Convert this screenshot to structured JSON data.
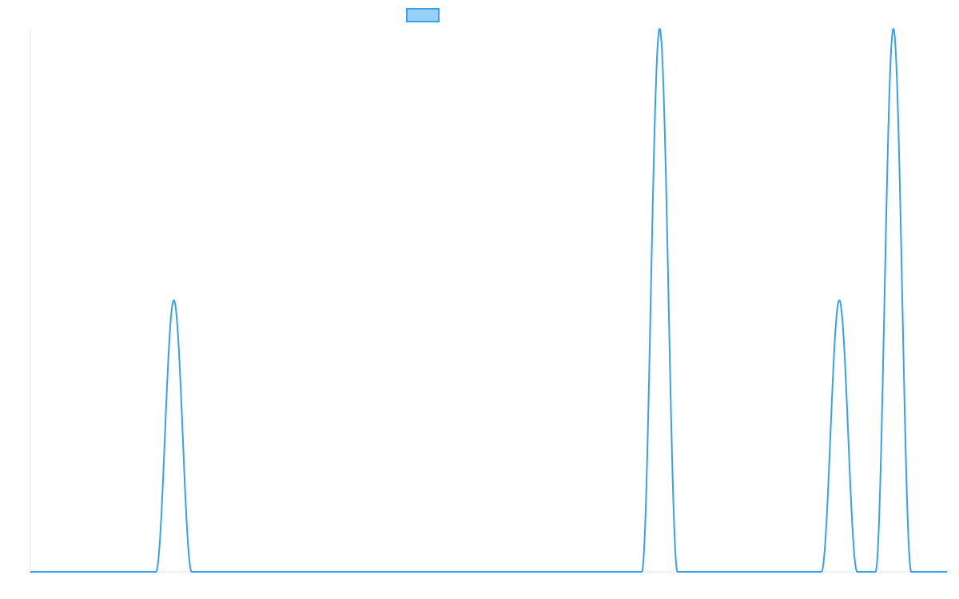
{
  "chart_data": {
    "type": "line",
    "title": "",
    "xlabel": "",
    "ylabel": "",
    "grid": false,
    "legend_placement": "top",
    "colors": {
      "line": "#36a2eb",
      "legend_fill": "#9ad0f5",
      "axis": "#e6e6e6"
    },
    "xlim": [
      0,
      1000
    ],
    "ylim": [
      0,
      1
    ],
    "series": [
      {
        "name": "",
        "curve": "raised-cosine-pulses",
        "pulses": [
          {
            "center": 156.5,
            "half_width": 19.5,
            "amplitude": 0.5
          },
          {
            "center": 686.5,
            "half_width": 19.5,
            "amplitude": 1.0
          },
          {
            "center": 882.5,
            "half_width": 19.5,
            "amplitude": 0.5
          },
          {
            "center": 941.5,
            "half_width": 19.5,
            "amplitude": 1.0
          }
        ]
      }
    ]
  }
}
